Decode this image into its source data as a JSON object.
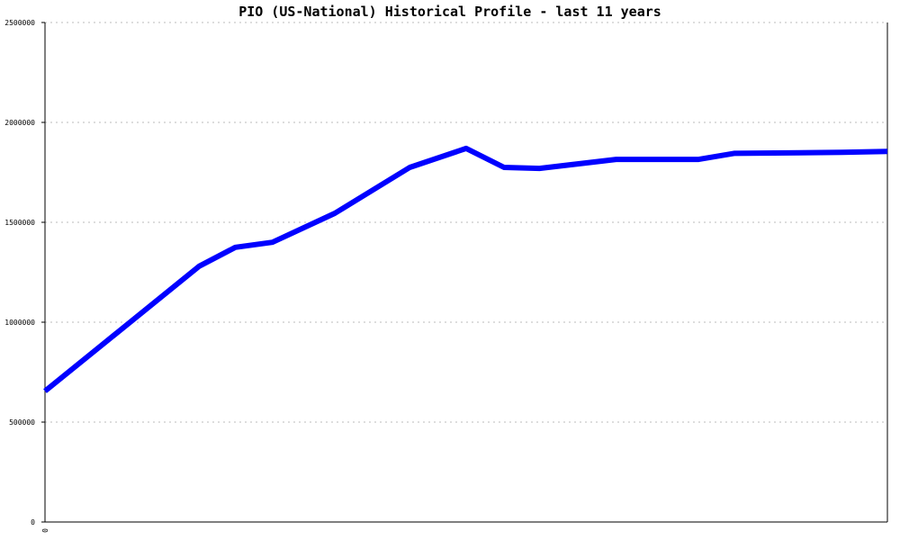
{
  "chart_data": {
    "type": "line",
    "title": "PIO (US-National) Historical Profile - last 11 years",
    "xlabel": "",
    "ylabel": "",
    "x_tick_labels": [
      "0"
    ],
    "y_ticks": [
      0,
      500000,
      1000000,
      1500000,
      2000000,
      2500000
    ],
    "y_tick_labels": [
      "0",
      "500000",
      "1000000",
      "1500000",
      "2000000",
      "2500000"
    ],
    "ylim": [
      0,
      2500000
    ],
    "xlim": [
      0,
      1
    ],
    "grid": true,
    "series": [
      {
        "color": "#0000ff",
        "x": [
          0,
          0.183,
          0.226,
          0.27,
          0.344,
          0.433,
          0.5,
          0.545,
          0.587,
          0.678,
          0.776,
          0.818,
          0.946,
          1.0
        ],
        "values": [
          655000,
          1280000,
          1375000,
          1400000,
          1545000,
          1775000,
          1870000,
          1775000,
          1770000,
          1815000,
          1815000,
          1845000,
          1850000,
          1855000
        ]
      }
    ]
  }
}
